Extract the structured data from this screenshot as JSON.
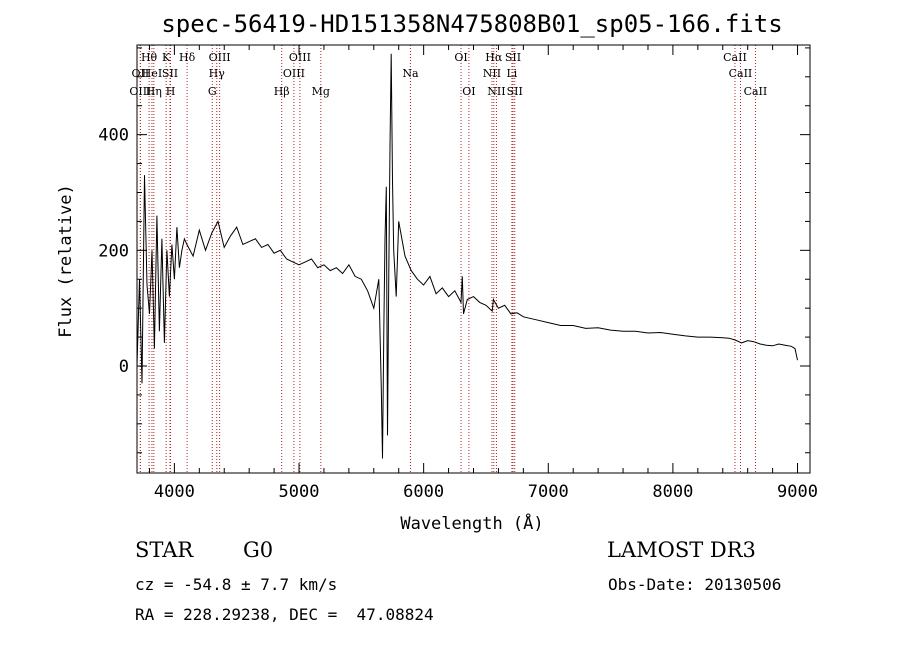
{
  "info": {
    "object_class": "STAR",
    "subclass": "G0",
    "survey": "LAMOST DR3",
    "redshift_line": "cz = -54.8 ± 7.7 km/s",
    "obs_date_line": "Obs-Date: 20130506",
    "coords_line": "RA = 228.29238, DEC =  47.08824"
  },
  "chart_data": {
    "type": "line",
    "title": "spec-56419-HD151358N475808B01_sp05-166.fits",
    "xlabel": "Wavelength (Å)",
    "ylabel": "Flux (relative)",
    "xlim": [
      3700,
      9100
    ],
    "ylim": [
      -185,
      555
    ],
    "xticks": [
      4000,
      5000,
      6000,
      7000,
      8000,
      9000
    ],
    "yticks": [
      0,
      200,
      400
    ],
    "series": [
      {
        "name": "flux",
        "x": [
          3700,
          3720,
          3740,
          3760,
          3780,
          3800,
          3820,
          3840,
          3860,
          3880,
          3900,
          3920,
          3940,
          3960,
          3980,
          4000,
          4020,
          4040,
          4060,
          4080,
          4100,
          4150,
          4200,
          4250,
          4300,
          4350,
          4400,
          4450,
          4500,
          4550,
          4600,
          4650,
          4700,
          4750,
          4800,
          4850,
          4900,
          4950,
          5000,
          5050,
          5100,
          5150,
          5200,
          5250,
          5300,
          5350,
          5400,
          5450,
          5500,
          5550,
          5600,
          5640,
          5660,
          5670,
          5680,
          5690,
          5700,
          5710,
          5720,
          5730,
          5740,
          5750,
          5760,
          5780,
          5800,
          5850,
          5900,
          5950,
          6000,
          6050,
          6100,
          6150,
          6200,
          6250,
          6300,
          6310,
          6320,
          6350,
          6400,
          6450,
          6500,
          6550,
          6560,
          6600,
          6650,
          6700,
          6750,
          6800,
          6900,
          7000,
          7100,
          7200,
          7300,
          7400,
          7500,
          7600,
          7700,
          7800,
          7900,
          8000,
          8100,
          8200,
          8300,
          8400,
          8450,
          8500,
          8550,
          8600,
          8650,
          8700,
          8750,
          8800,
          8850,
          8900,
          8950,
          8980,
          9000
        ],
        "values": [
          0,
          150,
          -30,
          330,
          140,
          90,
          200,
          30,
          260,
          60,
          220,
          40,
          200,
          120,
          210,
          150,
          240,
          170,
          200,
          220,
          210,
          190,
          235,
          200,
          230,
          250,
          205,
          225,
          240,
          210,
          215,
          220,
          205,
          210,
          195,
          200,
          185,
          180,
          175,
          180,
          185,
          170,
          175,
          165,
          170,
          160,
          175,
          155,
          150,
          130,
          100,
          150,
          -40,
          -160,
          60,
          220,
          310,
          -120,
          160,
          380,
          540,
          320,
          200,
          120,
          250,
          190,
          165,
          150,
          140,
          155,
          125,
          135,
          120,
          130,
          110,
          155,
          90,
          115,
          120,
          110,
          105,
          95,
          115,
          100,
          105,
          90,
          92,
          85,
          80,
          75,
          70,
          70,
          65,
          66,
          62,
          60,
          60,
          57,
          58,
          55,
          52,
          50,
          50,
          49,
          48,
          45,
          40,
          44,
          42,
          38,
          36,
          35,
          38,
          36,
          34,
          30,
          10
        ]
      }
    ],
    "lines": [
      {
        "name": "OII",
        "wave": 3727,
        "row": 1
      },
      {
        "name": "OIII",
        "wave": 3727,
        "row": 2
      },
      {
        "name": "Hθ",
        "wave": 3797,
        "row": 0
      },
      {
        "name": "HeI",
        "wave": 3820,
        "row": 1
      },
      {
        "name": "Hη",
        "wave": 3835,
        "row": 2
      },
      {
        "name": "K",
        "wave": 3934,
        "row": 0
      },
      {
        "name": "SII",
        "wave": 3965,
        "row": 1
      },
      {
        "name": "H",
        "wave": 3969,
        "row": 2
      },
      {
        "name": "Hδ",
        "wave": 4102,
        "row": 0
      },
      {
        "name": "OIII",
        "wave": 4363,
        "row": 0
      },
      {
        "name": "Hγ",
        "wave": 4340,
        "row": 1
      },
      {
        "name": "G",
        "wave": 4304,
        "row": 2
      },
      {
        "name": "Hβ",
        "wave": 4861,
        "row": 2
      },
      {
        "name": "OIII",
        "wave": 5007,
        "row": 0
      },
      {
        "name": "OIII",
        "wave": 4959,
        "row": 1
      },
      {
        "name": "Mg",
        "wave": 5175,
        "row": 2
      },
      {
        "name": "Na",
        "wave": 5894,
        "row": 1
      },
      {
        "name": "OI",
        "wave": 6300,
        "row": 0
      },
      {
        "name": "OI",
        "wave": 6363,
        "row": 2
      },
      {
        "name": "Hα",
        "wave": 6563,
        "row": 0
      },
      {
        "name": "NII",
        "wave": 6548,
        "row": 1
      },
      {
        "name": "NII",
        "wave": 6584,
        "row": 2
      },
      {
        "name": "SII",
        "wave": 6717,
        "row": 0
      },
      {
        "name": "Li",
        "wave": 6708,
        "row": 1
      },
      {
        "name": "SII",
        "wave": 6731,
        "row": 2
      },
      {
        "name": "CaII",
        "wave": 8498,
        "row": 0
      },
      {
        "name": "CaII",
        "wave": 8542,
        "row": 1
      },
      {
        "name": "CaII",
        "wave": 8662,
        "row": 2
      }
    ]
  },
  "colors": {
    "spectrum": "#000000",
    "line_marker": "#b22222"
  }
}
